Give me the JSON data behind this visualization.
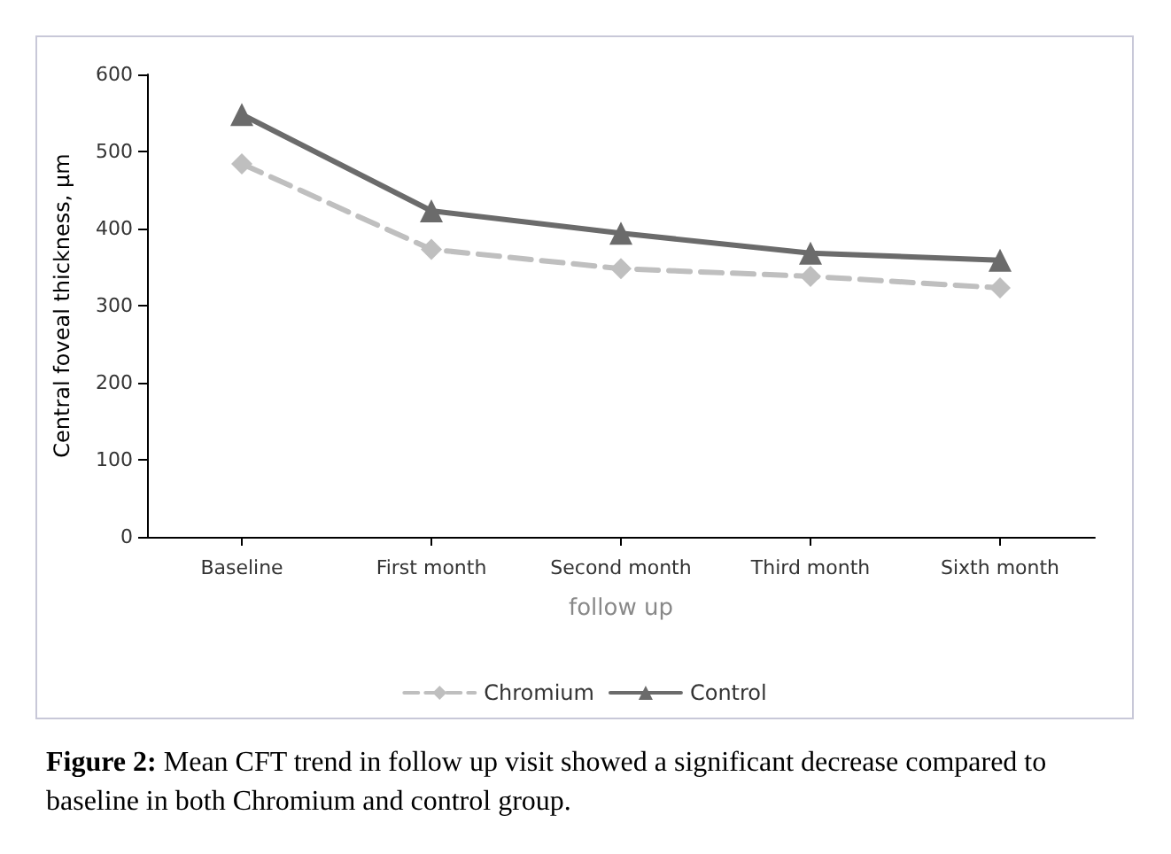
{
  "chart_data": {
    "type": "line",
    "xlabel": "follow up",
    "ylabel": "Central foveal thickness, µm",
    "categories": [
      "Baseline",
      "First month",
      "Second month",
      "Third month",
      "Sixth month"
    ],
    "series": [
      {
        "name": "Chromium",
        "color": "#bfbfbf",
        "marker": "diamond",
        "line_style": "dashed",
        "values": [
          484,
          373,
          348,
          338,
          323
        ]
      },
      {
        "name": "Control",
        "color": "#6b6b6b",
        "marker": "triangle",
        "line_style": "solid",
        "values": [
          548,
          423,
          394,
          368,
          359
        ]
      }
    ],
    "ylim": [
      0,
      600
    ],
    "yticks": [
      0,
      100,
      200,
      300,
      400,
      500,
      600
    ],
    "grid": false,
    "legend": "bottom",
    "annotations": [
      "Figure 2: Mean CFT trend in follow up visit showed a significant decrease compared to baseline in both Chromium and control group."
    ]
  }
}
